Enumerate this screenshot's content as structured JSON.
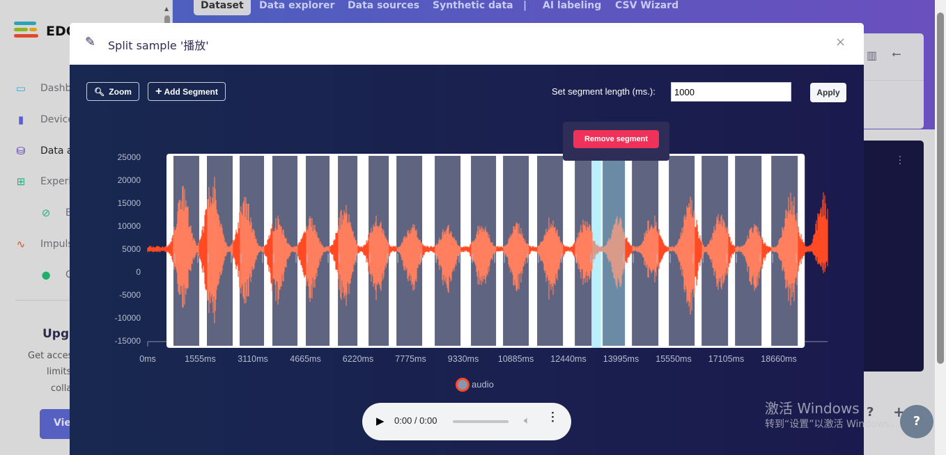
{
  "sidebar": {
    "logo_text": "EDG",
    "items": [
      {
        "label": "Dashb",
        "icon": "monitor-icon"
      },
      {
        "label": "Device",
        "icon": "chip-icon"
      },
      {
        "label": "Data a",
        "icon": "database-icon"
      },
      {
        "label": "Experi",
        "icon": "grid-icon"
      },
      {
        "label": "E",
        "icon": "compass-icon"
      },
      {
        "label": "Impuls",
        "icon": "pulse-icon"
      },
      {
        "label": "C",
        "icon": "dot-icon"
      }
    ],
    "upgrade": {
      "title": "Upgr",
      "lines": [
        "Get acces",
        "limits",
        "colla"
      ],
      "button": "Vie"
    }
  },
  "topnav": {
    "tabs": [
      "Dataset",
      "Data explorer",
      "Data sources",
      "Synthetic data",
      "|",
      "AI labeling",
      "CSV Wizard"
    ]
  },
  "modal": {
    "title": "Split sample '播放'",
    "close": "×",
    "zoom_label": "Zoom",
    "add_segment_label": "Add Segment",
    "segment_length_label": "Set segment length (ms.):",
    "segment_length_value": "1000",
    "apply_label": "Apply",
    "remove_segment_label": "Remove segment",
    "legend_label": "audio",
    "player": {
      "time": "0:00 / 0:00"
    }
  },
  "colors": {
    "wave": "#ff7f5e",
    "wave_outside": "#ff4a25",
    "segment": "#5f6580",
    "selected": "#b9f0fb",
    "remove": "#f0325a"
  },
  "chart_data": {
    "type": "line",
    "series": [
      {
        "name": "audio"
      }
    ],
    "xlabel": "",
    "ylabel": "",
    "xlim": [
      0,
      19900
    ],
    "ylim": [
      -15000,
      25000
    ],
    "x_ticks": [
      "0ms",
      "1555ms",
      "3110ms",
      "4665ms",
      "6220ms",
      "7775ms",
      "9330ms",
      "10885ms",
      "12440ms",
      "13995ms",
      "15550ms",
      "17105ms",
      "18660ms"
    ],
    "x_tick_values": [
      0,
      1555,
      3110,
      4665,
      6220,
      7775,
      9330,
      10885,
      12440,
      13995,
      15550,
      17105,
      18660
    ],
    "y_ticks": [
      25000,
      20000,
      15000,
      10000,
      5000,
      0,
      -5000,
      -10000,
      -15000
    ],
    "baseline": 5000,
    "segments_ms": [
      [
        762,
        1524
      ],
      [
        1751,
        2513
      ],
      [
        2719,
        3440
      ],
      [
        3687,
        4429
      ],
      [
        4676,
        5377
      ],
      [
        5624,
        6201
      ],
      [
        6530,
        7128
      ],
      [
        7354,
        8116
      ],
      [
        8487,
        9249
      ],
      [
        9558,
        10300
      ],
      [
        10506,
        11268
      ],
      [
        11515,
        12278
      ],
      [
        12628,
        13143
      ],
      [
        13143,
        14111
      ],
      [
        14317,
        15100
      ],
      [
        15409,
        16171
      ],
      [
        16377,
        17160
      ],
      [
        17366,
        18149
      ],
      [
        18437,
        19220
      ]
    ],
    "selected_segment": 13,
    "bursts": [
      [
        1030,
        19000,
        -8000
      ],
      [
        1910,
        22000,
        -12500
      ],
      [
        2880,
        17000,
        -7500
      ],
      [
        3830,
        12500,
        -7500
      ],
      [
        4800,
        12500,
        -7000
      ],
      [
        5830,
        15500,
        -8500
      ],
      [
        6780,
        13500,
        -8000
      ],
      [
        7810,
        11000,
        -5000
      ],
      [
        8860,
        10500,
        -5000
      ],
      [
        9890,
        11500,
        -5000
      ],
      [
        10920,
        11000,
        -4500
      ],
      [
        11930,
        12500,
        -7000
      ],
      [
        12940,
        12000,
        -3500
      ],
      [
        13910,
        12500,
        -4000
      ],
      [
        14920,
        13000,
        -3000
      ],
      [
        16030,
        17000,
        -10000
      ],
      [
        16940,
        14000,
        -5500
      ],
      [
        17950,
        11000,
        -5000
      ],
      [
        19020,
        18000,
        -8000
      ],
      [
        19990,
        18000,
        -500
      ]
    ]
  },
  "right": {
    "help_glyph": "?",
    "plus_glyph": "+"
  },
  "watermark": {
    "line1": "激活 Windows",
    "line2": "转到“设置”以激活 Windows。"
  }
}
